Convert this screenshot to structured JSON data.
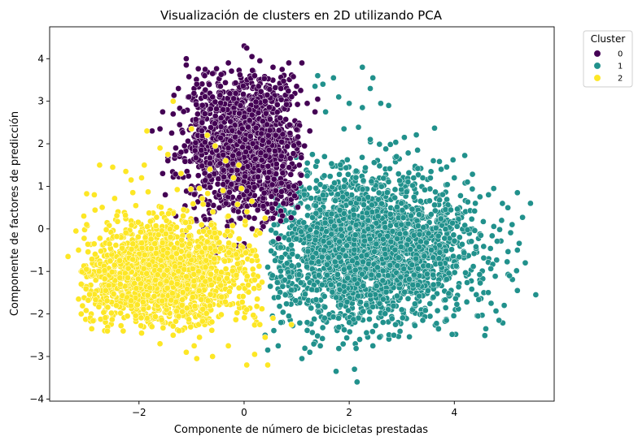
{
  "chart_data": {
    "type": "scatter",
    "title": "Visualización de clusters en 2D utilizando PCA",
    "xlabel": "Componente de número de bicicletas prestadas",
    "ylabel": "Componente de factores de predicción",
    "xlim": [
      -3.7,
      5.9
    ],
    "ylim": [
      -4.05,
      4.75
    ],
    "xticks": [
      -2,
      0,
      2,
      4
    ],
    "xtick_labels": [
      "−2",
      "0",
      "2",
      "4"
    ],
    "yticks": [
      -4,
      -3,
      -2,
      -1,
      0,
      1,
      2,
      3,
      4
    ],
    "ytick_labels": [
      "−4",
      "−3",
      "−2",
      "−1",
      "0",
      "1",
      "2",
      "3",
      "4"
    ],
    "grid": false,
    "legend": {
      "title": "Cluster",
      "placement": "outside-top-right"
    },
    "series": [
      {
        "name": "0",
        "color": "#440154",
        "points": [
          [
            -1.1,
            4.0
          ],
          [
            -1.1,
            3.85
          ],
          [
            -0.75,
            3.6
          ],
          [
            -0.6,
            3.65
          ],
          [
            0.0,
            4.3
          ],
          [
            0.05,
            4.25
          ],
          [
            0.15,
            4.05
          ],
          [
            0.3,
            3.95
          ],
          [
            0.55,
            3.8
          ],
          [
            0.85,
            3.9
          ],
          [
            1.1,
            3.9
          ],
          [
            -0.3,
            3.9
          ],
          [
            -0.9,
            3.4
          ],
          [
            0.2,
            3.6
          ],
          [
            -0.45,
            3.35
          ],
          [
            0.7,
            3.3
          ],
          [
            1.0,
            3.35
          ],
          [
            -1.25,
            3.3
          ],
          [
            -1.05,
            3.1
          ],
          [
            -1.55,
            2.75
          ],
          [
            -1.6,
            2.35
          ],
          [
            -1.75,
            2.3
          ],
          [
            -1.35,
            2.7
          ],
          [
            -0.6,
            3.1
          ],
          [
            0.4,
            3.0
          ],
          [
            1.2,
            2.95
          ],
          [
            1.35,
            2.75
          ],
          [
            1.4,
            3.05
          ],
          [
            -1.45,
            1.6
          ],
          [
            -1.55,
            1.3
          ],
          [
            -1.2,
            1.8
          ],
          [
            -1.5,
            0.8
          ],
          [
            -1.3,
            0.3
          ],
          [
            -1.05,
            -0.2
          ],
          [
            -0.85,
            -0.55
          ],
          [
            -0.55,
            -0.6
          ],
          [
            -0.3,
            -0.45
          ],
          [
            0.0,
            -0.35
          ],
          [
            0.3,
            -0.1
          ],
          [
            0.55,
            0.25
          ],
          [
            0.75,
            0.6
          ],
          [
            0.95,
            1.0
          ],
          [
            1.05,
            1.5
          ],
          [
            1.15,
            1.95
          ],
          [
            1.25,
            2.3
          ],
          [
            -0.95,
            0.5
          ],
          [
            -0.7,
            0.0
          ],
          [
            -1.0,
            1.0
          ],
          [
            -0.2,
            0.6
          ],
          [
            0.45,
            1.2
          ],
          [
            -0.3,
            1.9
          ],
          [
            0.6,
            2.2
          ],
          [
            -0.8,
            2.5
          ],
          [
            0.1,
            2.8
          ]
        ],
        "cluster": {
          "cx": 0.0,
          "cy": 1.95,
          "sx": 0.55,
          "sy": 0.85,
          "count": 1500,
          "xmin": -1.5,
          "xmax": 1.1,
          "ymin": -0.45,
          "ymax": 3.8
        }
      },
      {
        "name": "1",
        "color": "#21918c",
        "points": [
          [
            1.4,
            3.6
          ],
          [
            1.35,
            3.35
          ],
          [
            1.5,
            3.4
          ],
          [
            1.7,
            3.55
          ],
          [
            2.25,
            3.8
          ],
          [
            2.4,
            3.3
          ],
          [
            2.45,
            3.55
          ],
          [
            1.8,
            3.1
          ],
          [
            2.0,
            2.95
          ],
          [
            2.6,
            2.95
          ],
          [
            2.75,
            2.9
          ],
          [
            2.25,
            2.85
          ],
          [
            1.55,
            2.75
          ],
          [
            3.05,
            2.15
          ],
          [
            3.3,
            1.85
          ],
          [
            3.6,
            1.6
          ],
          [
            3.75,
            1.4
          ],
          [
            4.0,
            1.2
          ],
          [
            4.25,
            1.1
          ],
          [
            4.75,
            0.95
          ],
          [
            4.65,
            0.8
          ],
          [
            5.2,
            0.85
          ],
          [
            5.45,
            0.6
          ],
          [
            5.1,
            0.1
          ],
          [
            5.2,
            -0.5
          ],
          [
            5.35,
            -0.8
          ],
          [
            5.05,
            -1.1
          ],
          [
            5.2,
            -1.45
          ],
          [
            5.55,
            -1.55
          ],
          [
            4.95,
            -1.8
          ],
          [
            4.7,
            -1.75
          ],
          [
            4.85,
            -2.15
          ],
          [
            4.6,
            -2.35
          ],
          [
            4.45,
            -2.05
          ],
          [
            3.85,
            -2.15
          ],
          [
            3.7,
            -2.35
          ],
          [
            3.4,
            -2.15
          ],
          [
            2.85,
            -2.5
          ],
          [
            2.45,
            -2.75
          ],
          [
            2.2,
            -2.6
          ],
          [
            2.1,
            -3.3
          ],
          [
            2.15,
            -3.6
          ],
          [
            1.75,
            -3.35
          ],
          [
            1.45,
            -2.75
          ],
          [
            1.25,
            -2.9
          ],
          [
            1.1,
            -3.05
          ],
          [
            0.65,
            -2.75
          ],
          [
            0.45,
            -2.85
          ],
          [
            0.4,
            -2.5
          ],
          [
            0.7,
            -2.2
          ],
          [
            0.5,
            -1.35
          ],
          [
            0.45,
            -0.9
          ],
          [
            0.55,
            -0.3
          ],
          [
            0.8,
            0.2
          ],
          [
            1.05,
            0.75
          ],
          [
            1.2,
            1.25
          ],
          [
            1.3,
            1.75
          ],
          [
            1.9,
            2.35
          ],
          [
            2.4,
            2.1
          ],
          [
            2.9,
            1.7
          ],
          [
            3.4,
            1.2
          ],
          [
            4.4,
            0.6
          ],
          [
            4.9,
            0.2
          ],
          [
            4.1,
            -0.2
          ],
          [
            3.0,
            -1.9
          ],
          [
            2.0,
            -2.2
          ],
          [
            1.2,
            -2.2
          ]
        ],
        "cluster": {
          "cx": 2.35,
          "cy": -0.45,
          "sx": 1.0,
          "sy": 0.85,
          "count": 2500,
          "xmin": 0.5,
          "xmax": 5.3,
          "ymin": -2.9,
          "ymax": 2.4
        }
      },
      {
        "name": "2",
        "color": "#fde725",
        "points": [
          [
            -1.35,
            3.0
          ],
          [
            -1.0,
            2.35
          ],
          [
            -0.7,
            2.2
          ],
          [
            -0.55,
            1.95
          ],
          [
            -0.35,
            1.6
          ],
          [
            -0.1,
            1.5
          ],
          [
            -0.05,
            0.95
          ],
          [
            0.15,
            0.65
          ],
          [
            0.4,
            0.25
          ],
          [
            0.3,
            -0.1
          ],
          [
            -1.85,
            2.3
          ],
          [
            -1.6,
            1.9
          ],
          [
            -1.45,
            1.75
          ],
          [
            -1.9,
            1.5
          ],
          [
            -1.95,
            1.2
          ],
          [
            -2.15,
            1.15
          ],
          [
            -2.25,
            1.35
          ],
          [
            -2.5,
            1.45
          ],
          [
            -2.75,
            1.5
          ],
          [
            -2.85,
            0.8
          ],
          [
            -3.05,
            0.3
          ],
          [
            -3.2,
            -0.05
          ],
          [
            -3.15,
            -0.5
          ],
          [
            -3.35,
            -0.65
          ],
          [
            -3.0,
            -0.95
          ],
          [
            -3.1,
            -1.3
          ],
          [
            -3.15,
            -1.65
          ],
          [
            -3.1,
            -2.0
          ],
          [
            -2.9,
            -2.35
          ],
          [
            -2.6,
            -2.4
          ],
          [
            -2.3,
            -2.4
          ],
          [
            -1.95,
            -2.45
          ],
          [
            -1.6,
            -2.7
          ],
          [
            -1.35,
            -2.5
          ],
          [
            -1.1,
            -2.9
          ],
          [
            -0.95,
            -2.75
          ],
          [
            -0.85,
            -2.55
          ],
          [
            -0.9,
            -3.05
          ],
          [
            -0.6,
            -3.0
          ],
          [
            -0.3,
            -2.75
          ],
          [
            0.05,
            -3.2
          ],
          [
            0.2,
            -2.95
          ],
          [
            0.45,
            -3.2
          ],
          [
            0.4,
            -2.55
          ],
          [
            0.3,
            -2.25
          ],
          [
            0.55,
            -2.1
          ],
          [
            0.9,
            -2.25
          ],
          [
            0.25,
            -1.65
          ],
          [
            0.2,
            -1.2
          ],
          [
            0.15,
            -0.75
          ],
          [
            0.1,
            -0.4
          ],
          [
            -0.3,
            0.3
          ],
          [
            -0.85,
            0.95
          ],
          [
            -1.2,
            1.3
          ],
          [
            -0.4,
            0.9
          ],
          [
            -0.65,
            1.4
          ],
          [
            -0.2,
            1.2
          ],
          [
            -1.15,
            0.45
          ],
          [
            -0.7,
            -0.3
          ],
          [
            -0.15,
            -0.6
          ],
          [
            0.05,
            -1.9
          ]
        ],
        "cluster": {
          "cx": -1.55,
          "cy": -1.05,
          "sx": 0.85,
          "sy": 0.65,
          "count": 1700,
          "xmin": -3.1,
          "xmax": 0.35,
          "ymin": -2.4,
          "ymax": 1.2
        }
      }
    ]
  }
}
